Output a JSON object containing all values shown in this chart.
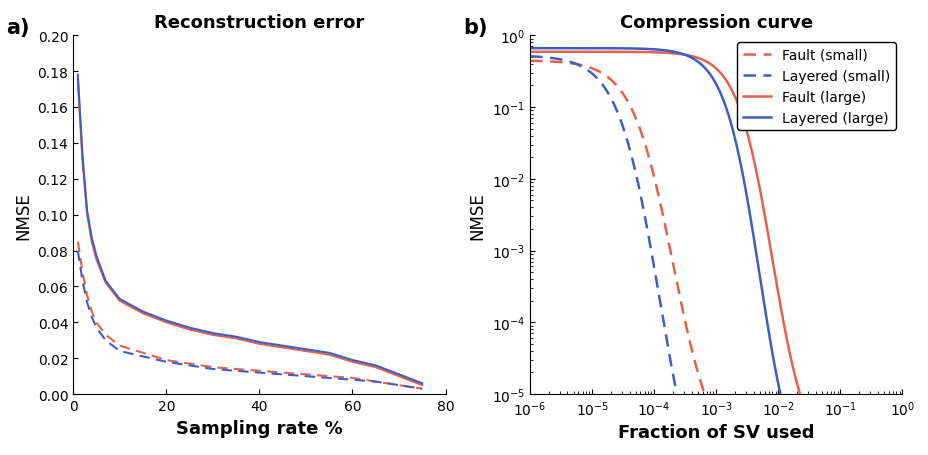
{
  "title_a": "Reconstruction error",
  "title_b": "Compression curve",
  "xlabel_a": "Sampling rate %",
  "ylabel_a": "NMSE",
  "xlabel_b": "Fraction of SV used",
  "ylabel_b": "NMSE",
  "label_a": "a)",
  "label_b": "b)",
  "color_red": "#E8604C",
  "color_blue": "#3F5EC5",
  "legend_entries": [
    "Fault (small)",
    "Layered (small)",
    "Fault (large)",
    "Layered (large)"
  ],
  "ylim_a": [
    0,
    0.2
  ],
  "xlim_a": [
    0,
    80
  ]
}
